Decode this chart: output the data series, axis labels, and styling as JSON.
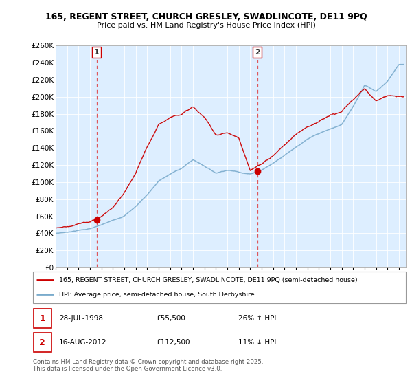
{
  "title1": "165, REGENT STREET, CHURCH GRESLEY, SWADLINCOTE, DE11 9PQ",
  "title2": "Price paid vs. HM Land Registry's House Price Index (HPI)",
  "legend1": "165, REGENT STREET, CHURCH GRESLEY, SWADLINCOTE, DE11 9PQ (semi-detached house)",
  "legend2": "HPI: Average price, semi-detached house, South Derbyshire",
  "purchase1_date": "28-JUL-1998",
  "purchase1_price": 55500,
  "purchase1_hpi": "26% ↑ HPI",
  "purchase2_date": "16-AUG-2012",
  "purchase2_price": 112500,
  "purchase2_hpi": "11% ↓ HPI",
  "ylim": [
    0,
    260000
  ],
  "ytick_step": 20000,
  "background_color": "#ffffff",
  "plot_bg_color": "#ddeeff",
  "grid_color": "#ffffff",
  "line_color_property": "#cc0000",
  "line_color_hpi": "#7aabcc",
  "marker_color": "#cc0000",
  "footer": "Contains HM Land Registry data © Crown copyright and database right 2025.\nThis data is licensed under the Open Government Licence v3.0.",
  "purchase1_year": 1998.57,
  "purchase2_year": 2012.62,
  "hpi_anchors_years": [
    1995,
    1996,
    1997,
    1998,
    1999,
    2000,
    2001,
    2002,
    2003,
    2004,
    2005,
    2006,
    2007,
    2008,
    2009,
    2010,
    2011,
    2012,
    2013,
    2014,
    2015,
    2016,
    2017,
    2018,
    2019,
    2020,
    2021,
    2022,
    2023,
    2024,
    2025
  ],
  "hpi_anchors_vals": [
    38000,
    39500,
    42000,
    44000,
    48000,
    53000,
    59000,
    70000,
    84000,
    100000,
    108000,
    115000,
    125000,
    118000,
    110000,
    114000,
    112000,
    110000,
    115000,
    123000,
    133000,
    143000,
    152000,
    158000,
    163000,
    168000,
    190000,
    215000,
    208000,
    220000,
    240000
  ],
  "prop_anchors_years": [
    1995,
    1996,
    1997,
    1998,
    1999,
    2000,
    2001,
    2002,
    2003,
    2004,
    2005,
    2006,
    2007,
    2008,
    2009,
    2010,
    2011,
    2012,
    2013,
    2014,
    2015,
    2016,
    2017,
    2018,
    2019,
    2020,
    2021,
    2022,
    2023,
    2024,
    2025
  ],
  "prop_anchors_vals": [
    48000,
    50000,
    53000,
    55500,
    62000,
    72000,
    88000,
    110000,
    140000,
    165000,
    175000,
    180000,
    188000,
    175000,
    155000,
    158000,
    152000,
    112500,
    120000,
    130000,
    143000,
    155000,
    165000,
    172000,
    178000,
    182000,
    195000,
    208000,
    195000,
    202000,
    200000
  ]
}
